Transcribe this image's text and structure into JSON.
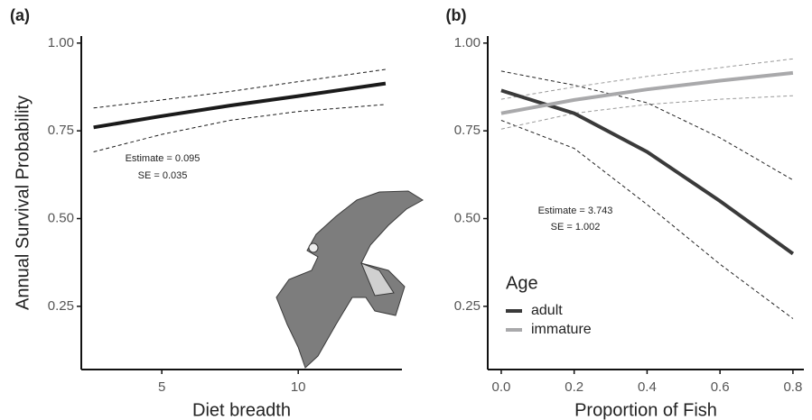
{
  "chart_data": [
    {
      "type": "line",
      "panel_label": "(a)",
      "xlabel": "Diet breadth",
      "ylabel": "Annual Survival Probability",
      "annotations": [
        "Estimate = 0.095",
        "SE = 0.035"
      ],
      "x": [
        2.5,
        5,
        7.5,
        10,
        13.2
      ],
      "series": [
        {
          "color": "#1a1a1a",
          "ci_color": "#1a1a1a",
          "values": [
            0.76,
            0.792,
            0.822,
            0.849,
            0.885
          ],
          "upper": [
            0.815,
            0.838,
            0.862,
            0.89,
            0.925
          ],
          "lower": [
            0.69,
            0.74,
            0.78,
            0.805,
            0.825
          ]
        }
      ],
      "xlim": [
        2.05,
        13.8
      ],
      "xticks": [
        5,
        10
      ],
      "ylim": [
        0.07,
        1.02
      ],
      "yticks": [
        {
          "value": 0.25,
          "label": "0.25"
        },
        {
          "value": 0.5,
          "label": "0.50"
        },
        {
          "value": 0.75,
          "label": "0.75"
        },
        {
          "value": 1.0,
          "label": "1.00"
        }
      ]
    },
    {
      "type": "line",
      "panel_label": "(b)",
      "xlabel": "Proportion of Fish",
      "legend_title": "Age",
      "annotations": [
        "Estimate = 3.743",
        "SE = 1.002"
      ],
      "x": [
        0,
        0.2,
        0.4,
        0.6,
        0.8
      ],
      "series": [
        {
          "name": "adult",
          "color": "#3a3a3a",
          "ci_color": "#222222",
          "values": [
            0.865,
            0.8,
            0.69,
            0.55,
            0.4
          ],
          "upper": [
            0.92,
            0.88,
            0.83,
            0.73,
            0.61
          ],
          "lower": [
            0.78,
            0.7,
            0.54,
            0.37,
            0.215
          ]
        },
        {
          "name": "immature",
          "color": "#a9a9ab",
          "ci_color": "#999999",
          "values": [
            0.8,
            0.838,
            0.868,
            0.893,
            0.915
          ],
          "upper": [
            0.84,
            0.875,
            0.905,
            0.93,
            0.955
          ],
          "lower": [
            0.755,
            0.8,
            0.825,
            0.84,
            0.85
          ]
        }
      ],
      "xlim": [
        -0.037,
        0.83
      ],
      "xticks": [
        {
          "value": 0,
          "label": "0.0"
        },
        0.2,
        0.4,
        0.6,
        0.8
      ],
      "ylim": [
        0.07,
        1.02
      ],
      "yticks": [
        {
          "value": 0.25,
          "label": "0.25"
        },
        {
          "value": 0.5,
          "label": "0.50"
        },
        {
          "value": 0.75,
          "label": "0.75"
        },
        {
          "value": 1.0,
          "label": "1.00"
        }
      ]
    }
  ]
}
